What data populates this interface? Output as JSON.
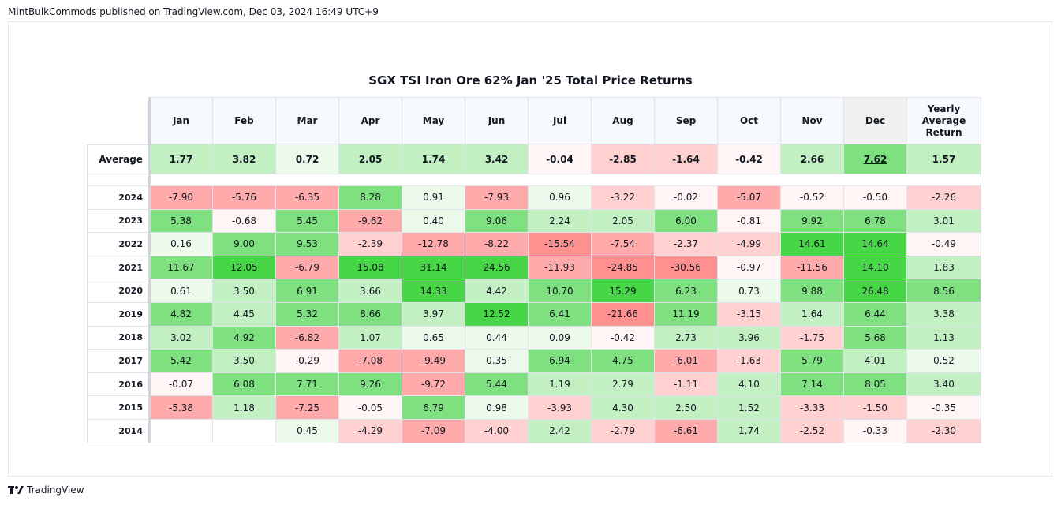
{
  "published": "MintBulkCommods published on TradingView.com, Dec 03, 2024 16:49 UTC+9",
  "footer": {
    "brand": "TradingView",
    "icon": "tradingview-logo-icon"
  },
  "colors": {
    "pos_light": "#ecfaec",
    "pos_mid": "#c3f0c3",
    "pos_strong": "#7ee07e",
    "pos_max": "#46d646",
    "neg_light": "#fff5f5",
    "neg_mid": "#ffd0d0",
    "neg_strong": "#ffaaaa",
    "neg_max": "#ff9090",
    "header_bg": "#f6fafd",
    "dec_header_bg": "#f0f0f0"
  },
  "chart_data": {
    "type": "table",
    "title": "SGX TSI Iron Ore 62% Jan '25 Total Price Returns",
    "columns": [
      "Jan",
      "Feb",
      "Mar",
      "Apr",
      "May",
      "Jun",
      "Jul",
      "Aug",
      "Sep",
      "Oct",
      "Nov",
      "Dec",
      "Yearly Average Return"
    ],
    "highlighted_column": "Dec",
    "average": {
      "label": "Average",
      "values": [
        "1.77",
        "3.82",
        "0.72",
        "2.05",
        "1.74",
        "3.42",
        "-0.04",
        "-2.85",
        "-1.64",
        "-0.42",
        "2.66",
        "7.62",
        "1.57"
      ]
    },
    "rows": [
      {
        "year": "2024",
        "values": [
          "-7.90",
          "-5.76",
          "-6.35",
          "8.28",
          "0.91",
          "-7.93",
          "0.96",
          "-3.22",
          "-0.02",
          "-5.07",
          "-0.52",
          "-0.50",
          "-2.26"
        ]
      },
      {
        "year": "2023",
        "values": [
          "5.38",
          "-0.68",
          "5.45",
          "-9.62",
          "0.40",
          "9.06",
          "2.24",
          "2.05",
          "6.00",
          "-0.81",
          "9.92",
          "6.78",
          "3.01"
        ]
      },
      {
        "year": "2022",
        "values": [
          "0.16",
          "9.00",
          "9.53",
          "-2.39",
          "-12.78",
          "-8.22",
          "-15.54",
          "-7.54",
          "-2.37",
          "-4.99",
          "14.61",
          "14.64",
          "-0.49"
        ]
      },
      {
        "year": "2021",
        "values": [
          "11.67",
          "12.05",
          "-6.79",
          "15.08",
          "31.14",
          "24.56",
          "-11.93",
          "-24.85",
          "-30.56",
          "-0.97",
          "-11.56",
          "14.10",
          "1.83"
        ]
      },
      {
        "year": "2020",
        "values": [
          "0.61",
          "3.50",
          "6.91",
          "3.66",
          "14.33",
          "4.42",
          "10.70",
          "15.29",
          "6.23",
          "0.73",
          "9.88",
          "26.48",
          "8.56"
        ]
      },
      {
        "year": "2019",
        "values": [
          "4.82",
          "4.45",
          "5.32",
          "8.66",
          "3.97",
          "12.52",
          "6.41",
          "-21.66",
          "11.19",
          "-3.15",
          "1.64",
          "6.44",
          "3.38"
        ]
      },
      {
        "year": "2018",
        "values": [
          "3.02",
          "4.92",
          "-6.82",
          "1.07",
          "0.65",
          "0.44",
          "0.09",
          "-0.42",
          "2.73",
          "3.96",
          "-1.75",
          "5.68",
          "1.13"
        ]
      },
      {
        "year": "2017",
        "values": [
          "5.42",
          "3.50",
          "-0.29",
          "-7.08",
          "-9.49",
          "0.35",
          "6.94",
          "4.75",
          "-6.01",
          "-1.63",
          "5.79",
          "4.01",
          "0.52"
        ]
      },
      {
        "year": "2016",
        "values": [
          "-0.07",
          "6.08",
          "7.71",
          "9.26",
          "-9.72",
          "5.44",
          "1.19",
          "2.79",
          "-1.11",
          "4.10",
          "7.14",
          "8.05",
          "3.40"
        ]
      },
      {
        "year": "2015",
        "values": [
          "-5.38",
          "1.18",
          "-7.25",
          "-0.05",
          "6.79",
          "0.98",
          "-3.93",
          "4.30",
          "2.50",
          "1.52",
          "-3.33",
          "-1.50",
          "-0.35"
        ]
      },
      {
        "year": "2014",
        "values": [
          "",
          "",
          "0.45",
          "-4.29",
          "-7.09",
          "-4.00",
          "2.42",
          "-2.79",
          "-6.61",
          "1.74",
          "-2.52",
          "-0.33",
          "-2.30"
        ]
      }
    ]
  }
}
